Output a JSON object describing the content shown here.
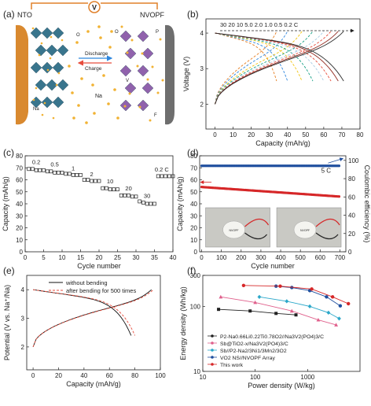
{
  "colors": {
    "electrode_left": "#d9892f",
    "electrode_right": "#6e6e6e",
    "wire": "#e0802a",
    "octa": "#2f6e87",
    "octa_purple": "#8b5aa8",
    "na": "#f1b233",
    "arrow": "#2e86de"
  },
  "panels": {
    "a": {
      "label": "(a)",
      "left": "NTO",
      "right": "NVOPF",
      "meter": "V",
      "discharge": "Discharge",
      "charge": "Charge",
      "na": "Na",
      "o_left": "O",
      "na_left": "Na",
      "o_right": "O",
      "p_right": "P",
      "v_right": "V",
      "f_right": "F"
    },
    "b": {
      "label": "(b)"
    },
    "c": {
      "label": "(c)"
    },
    "d": {
      "label": "(d)",
      "rate": "5 C",
      "photo_text": "NVOPF"
    },
    "e": {
      "label": "(e)"
    },
    "f": {
      "label": "(f)"
    }
  },
  "chart_data": [
    {
      "panel": "b",
      "type": "line",
      "xlabel": "Capacity (mAh/g)",
      "ylabel": "Voltage (V)",
      "xlim": [
        -5,
        80
      ],
      "ylim": [
        1.3,
        4.4
      ],
      "xticks": [
        "0",
        "10",
        "20",
        "30",
        "40",
        "50",
        "60",
        "70",
        "80"
      ],
      "yticks": [
        "2",
        "3",
        "4"
      ],
      "rate_labels": "30  20  10  5.0  2.0  1.0  0.5  0.2 C",
      "series": [
        {
          "rate": "30",
          "capacity": 34,
          "color": "#e67e22"
        },
        {
          "rate": "20",
          "capacity": 40,
          "color": "#2e86de"
        },
        {
          "rate": "10",
          "capacity": 48,
          "color": "#f1c40f"
        },
        {
          "rate": "5.0",
          "capacity": 54,
          "color": "#16a085"
        },
        {
          "rate": "2.0",
          "capacity": 60,
          "color": "#a9cce3"
        },
        {
          "rate": "1.0",
          "capacity": 64,
          "color": "#e74c3c"
        },
        {
          "rate": "0.5",
          "capacity": 68,
          "color": "#922b21"
        },
        {
          "rate": "0.2",
          "capacity": 71,
          "color": "#2c2c2c"
        }
      ]
    },
    {
      "panel": "c",
      "type": "scatter",
      "xlabel": "Cycle number",
      "ylabel": "Capacity (mAh/g)",
      "xlim": [
        0,
        40
      ],
      "ylim": [
        0,
        80
      ],
      "xticks": [
        "0",
        "5",
        "10",
        "15",
        "20",
        "25",
        "30",
        "35",
        "40"
      ],
      "yticks": [
        "0",
        "10",
        "20",
        "30",
        "40",
        "50",
        "60",
        "70",
        "80"
      ],
      "rate_annotations": [
        "0.2",
        "0.5",
        "1",
        "2",
        "10",
        "20",
        "30",
        "0.2 C"
      ],
      "points": [
        [
          1,
          69
        ],
        [
          2,
          69
        ],
        [
          3,
          68
        ],
        [
          4,
          68
        ],
        [
          5,
          68
        ],
        [
          6,
          67
        ],
        [
          7,
          67
        ],
        [
          8,
          66
        ],
        [
          9,
          66
        ],
        [
          10,
          66
        ],
        [
          11,
          65
        ],
        [
          12,
          65
        ],
        [
          13,
          64
        ],
        [
          14,
          64
        ],
        [
          15,
          64
        ],
        [
          16,
          60
        ],
        [
          17,
          60
        ],
        [
          18,
          59
        ],
        [
          19,
          59
        ],
        [
          20,
          59
        ],
        [
          21,
          53
        ],
        [
          22,
          53
        ],
        [
          23,
          52
        ],
        [
          24,
          52
        ],
        [
          25,
          52
        ],
        [
          26,
          47
        ],
        [
          27,
          47
        ],
        [
          28,
          47
        ],
        [
          29,
          46
        ],
        [
          30,
          46
        ],
        [
          31,
          42
        ],
        [
          32,
          41
        ],
        [
          33,
          40
        ],
        [
          34,
          40
        ],
        [
          35,
          40
        ],
        [
          36,
          63
        ],
        [
          37,
          63
        ],
        [
          38,
          63
        ],
        [
          39,
          63
        ],
        [
          40,
          63
        ]
      ]
    },
    {
      "panel": "d",
      "type": "scatter",
      "xlabel": "Cycle number",
      "ylabel": "Capacity (mAh/g)",
      "y2label": "Coulombic efficiency (%)",
      "xlim": [
        -10,
        730
      ],
      "ylim": [
        0,
        80
      ],
      "y2lim": [
        0,
        105
      ],
      "xticks": [
        "0",
        "100",
        "200",
        "300",
        "400",
        "500",
        "600",
        "700"
      ],
      "yticks": [
        "0",
        "10",
        "20",
        "30",
        "40",
        "50",
        "60",
        "70",
        "80"
      ],
      "y2ticks": [
        "0",
        "20",
        "40",
        "60",
        "80",
        "100"
      ],
      "series": [
        {
          "name": "capacity",
          "start": 54,
          "end": 46,
          "color": "#d62728"
        },
        {
          "name": "efficiency",
          "value": 94,
          "color": "#1f4e9e"
        }
      ]
    },
    {
      "panel": "e",
      "type": "line",
      "xlabel": "Capacity (mAh/g)",
      "ylabel": "Potential (V vs. Na⁺/Na)",
      "xlim": [
        -5,
        100
      ],
      "ylim": [
        1.2,
        4.5
      ],
      "xticks": [
        "0",
        "20",
        "40",
        "60",
        "80",
        "100"
      ],
      "yticks": [
        "2",
        "3",
        "4"
      ],
      "series": [
        {
          "name": "without bending",
          "capacity": 77,
          "color": "#111111"
        },
        {
          "name": "after bending for 500 times",
          "capacity": 80,
          "color": "#e74c3c"
        }
      ]
    },
    {
      "panel": "f",
      "type": "line",
      "xlabel": "Power density (W/kg)",
      "ylabel": "Energy density (Wh/kg)",
      "xscale": "log",
      "yscale": "log",
      "xlim": [
        10,
        10000
      ],
      "ylim": [
        10,
        300
      ],
      "xticks": [
        "10",
        "100",
        "1000"
      ],
      "yticks": [
        "10",
        "100",
        "300"
      ],
      "series": [
        {
          "name": "P2-Na0.66Li0.22Ti0.78O2//Na3V2(PO4)3/C",
          "color": "#222222",
          "marker": "square",
          "points": [
            [
              20,
              90
            ],
            [
              80,
              85
            ],
            [
              250,
              78
            ],
            [
              600,
              74
            ]
          ]
        },
        {
          "name": "Sb@TiO2-x/Na3V2(PO4)3/C",
          "color": "#e0608c",
          "marker": "triangle",
          "points": [
            [
              22,
              140
            ],
            [
              100,
              115
            ],
            [
              500,
              85
            ],
            [
              1600,
              62
            ],
            [
              3500,
              52
            ]
          ]
        },
        {
          "name": "Sb//P2-Na2/3Ni1/3Mn2/3O2",
          "color": "#2aa7c9",
          "marker": "diamond",
          "points": [
            [
              120,
              140
            ],
            [
              400,
              120
            ],
            [
              1100,
              100
            ],
            [
              2500,
              80
            ],
            [
              4000,
              65
            ]
          ]
        },
        {
          "name": "VO2 NS//NVOPF Array",
          "color": "#1f4e9e",
          "marker": "circle",
          "points": [
            [
              250,
              205
            ],
            [
              500,
              195
            ],
            [
              1100,
              175
            ],
            [
              2300,
              140
            ],
            [
              4200,
              102
            ]
          ]
        },
        {
          "name": "This work",
          "color": "#d62728",
          "marker": "circle",
          "points": [
            [
              60,
              210
            ],
            [
              300,
              205
            ],
            [
              1200,
              185
            ],
            [
              3000,
              140
            ],
            [
              6000,
              110
            ]
          ]
        }
      ]
    }
  ]
}
